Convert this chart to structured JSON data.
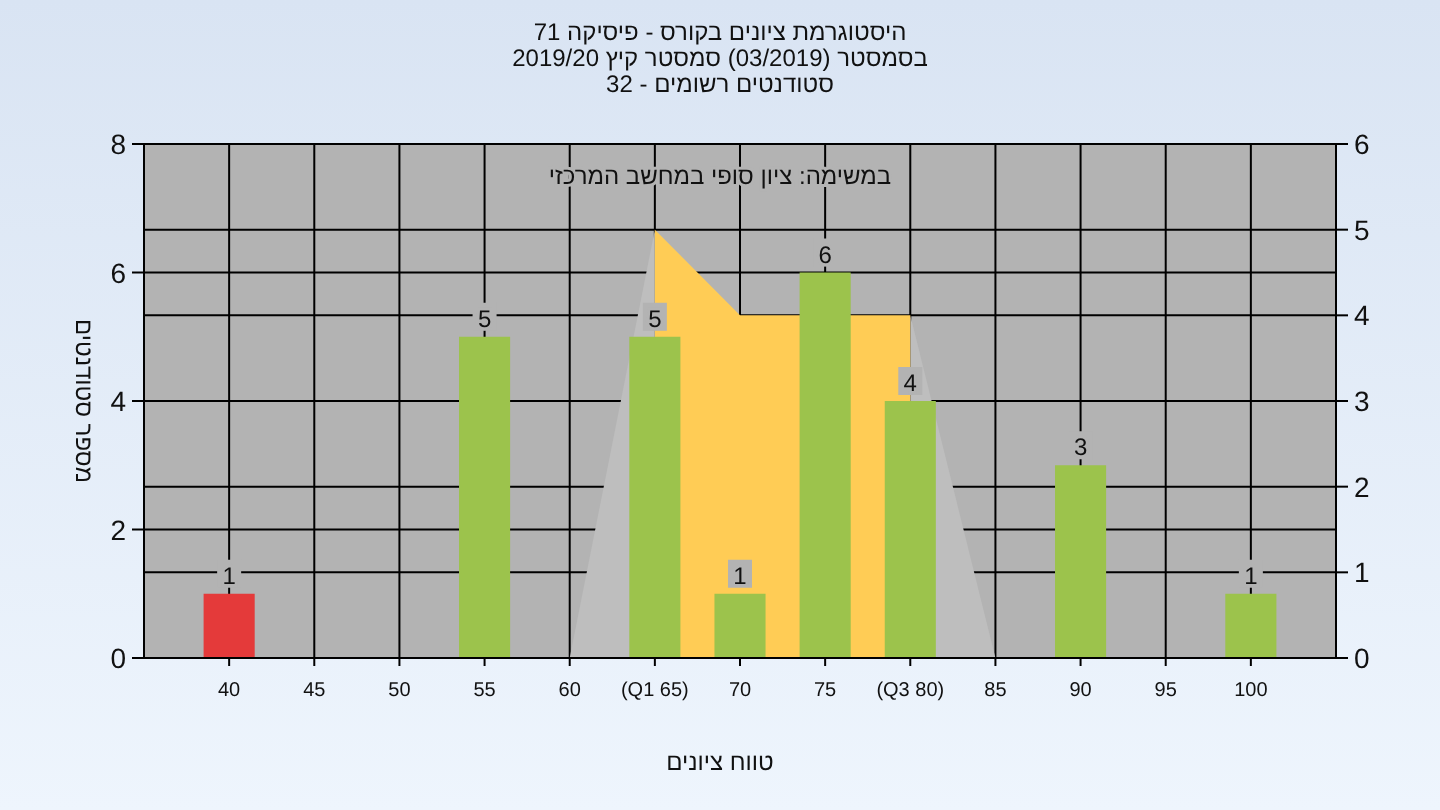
{
  "chart_data": {
    "type": "bar",
    "title": "היסטוגרמת ציונים בקורס - פיסיקה 71",
    "subtitle": "בסמסטר (03/2019) סמסטר קיץ 2019/20\nסטודנטים רשומים - 32",
    "annotations": [
      "במשימה: ציון סופי במחשב המרכזי"
    ],
    "xlabel": "טווח ציונים",
    "ylabel": "מספר סטודנטים",
    "xlim": [
      35,
      105
    ],
    "xticks": [
      40,
      45,
      50,
      55,
      60,
      {
        "value": 65,
        "label": "(Q1 65)"
      },
      70,
      75,
      {
        "value": 80,
        "label": "(Q3 80)"
      },
      85,
      90,
      95,
      100
    ],
    "ylim": [
      0,
      8
    ],
    "yticks": [
      0,
      2,
      4,
      6,
      8
    ],
    "y2lim": [
      0,
      6
    ],
    "y2ticks": [
      0,
      1,
      2,
      3,
      4,
      5,
      6
    ],
    "grid": true,
    "series": [
      {
        "type": "area",
        "axis": "y2",
        "color": "#bebebe",
        "x": [
          60,
          65,
          65
        ],
        "values": [
          0,
          5,
          0
        ]
      },
      {
        "type": "area",
        "axis": "y2",
        "color": "#bebebe",
        "x": [
          80,
          80,
          85
        ],
        "values": [
          0,
          4,
          0
        ]
      },
      {
        "type": "area",
        "axis": "y2",
        "color": "#ffcc55",
        "x": [
          65,
          65,
          70,
          80,
          80
        ],
        "values": [
          0,
          5,
          4,
          4,
          0
        ]
      },
      {
        "type": "bar",
        "x": [
          40,
          55,
          65,
          70,
          75,
          80,
          90,
          100
        ],
        "values": [
          1,
          5,
          5,
          1,
          6,
          4,
          3,
          1
        ],
        "colors": [
          "#e43a3a",
          "#9cc34c",
          "#9cc34c",
          "#9cc34c",
          "#9cc34c",
          "#9cc34c",
          "#9cc34c",
          "#9cc34c"
        ],
        "data_labels": true
      }
    ]
  }
}
